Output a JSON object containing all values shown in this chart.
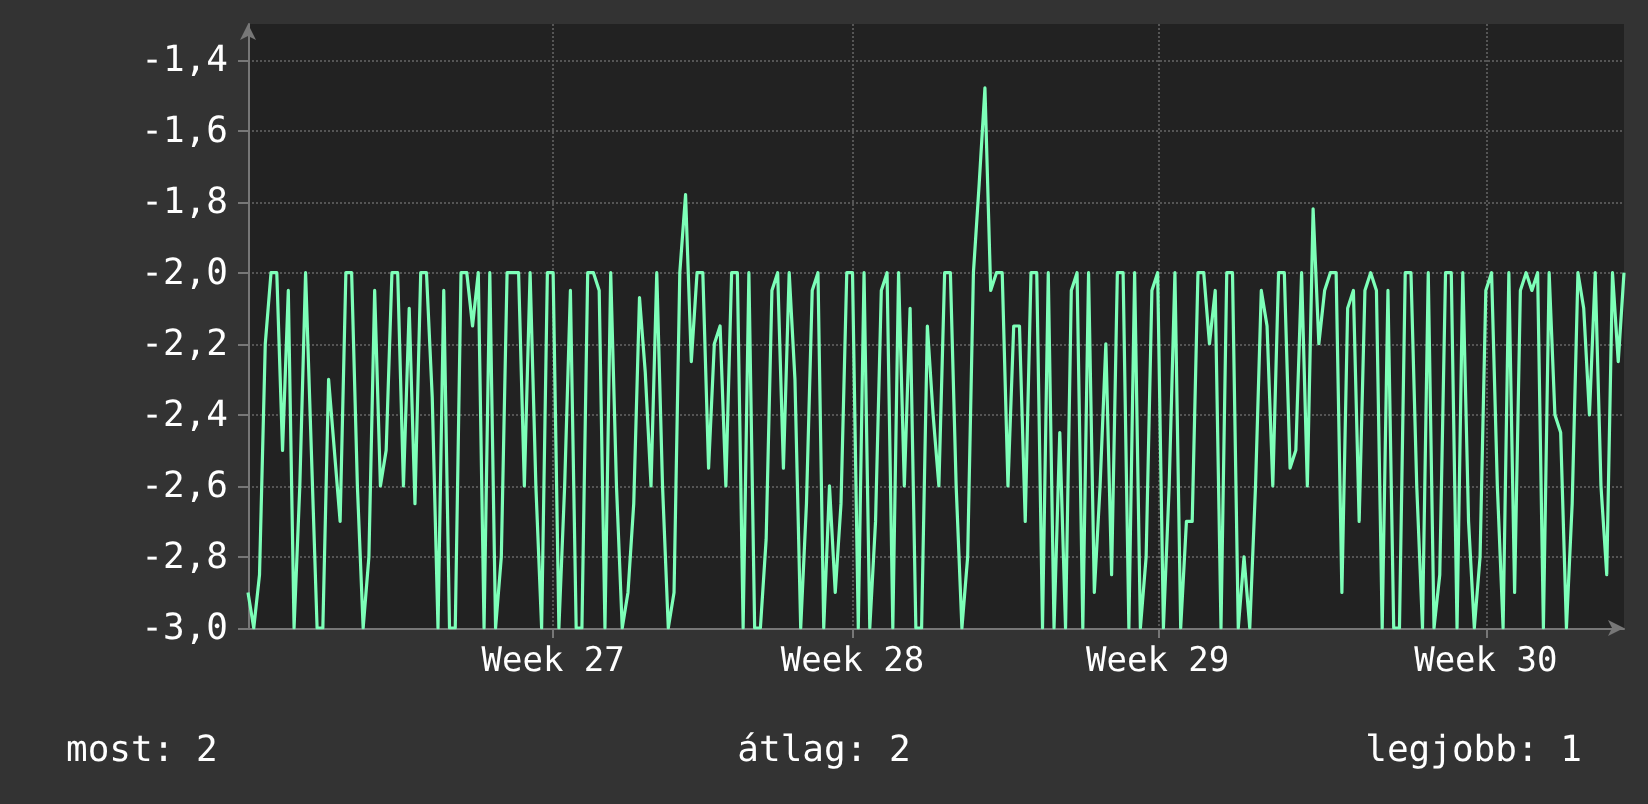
{
  "chart_data": {
    "type": "line",
    "ylim": [
      -3.0,
      -1.3
    ],
    "categories": [
      null,
      null,
      null,
      null,
      null,
      null,
      null,
      null,
      null,
      null,
      null,
      null,
      null,
      null,
      null,
      null,
      null,
      null,
      null,
      null,
      null,
      null,
      null,
      null,
      null,
      null,
      null,
      null,
      null,
      null,
      null,
      null,
      null,
      null,
      null,
      null,
      null,
      null,
      null,
      null,
      null,
      null,
      null,
      null,
      null,
      null,
      null,
      null,
      null,
      null,
      null,
      null,
      null,
      "Week 27",
      null,
      null,
      null,
      null,
      null,
      null,
      null,
      null,
      null,
      null,
      null,
      null,
      null,
      null,
      null,
      null,
      null,
      null,
      null,
      null,
      null,
      null,
      null,
      null,
      null,
      null,
      null,
      null,
      null,
      null,
      null,
      null,
      null,
      null,
      null,
      null,
      null,
      null,
      null,
      null,
      null,
      null,
      null,
      null,
      null,
      null,
      null,
      null,
      null,
      null,
      null,
      "Week 28",
      null,
      null,
      null,
      null,
      null,
      null,
      null,
      null,
      null,
      null,
      null,
      null,
      null,
      null,
      null,
      null,
      null,
      null,
      null,
      null,
      null,
      null,
      null,
      null,
      null,
      null,
      null,
      null,
      null,
      null,
      null,
      null,
      null,
      null,
      null,
      null,
      null,
      null,
      null,
      null,
      null,
      null,
      null,
      null,
      null,
      null,
      null,
      null,
      null,
      null,
      null,
      null,
      "Week 29",
      null,
      null,
      null,
      null,
      null,
      null,
      null,
      null,
      null,
      null,
      null,
      null,
      null,
      null,
      null,
      null,
      null,
      null,
      null,
      null,
      null,
      null,
      null,
      null,
      null,
      null,
      null,
      null,
      null,
      null,
      null,
      null,
      null,
      null,
      null,
      null,
      null,
      null,
      null,
      null,
      null,
      null,
      null,
      null,
      null,
      null,
      null,
      null,
      null,
      null,
      null,
      null,
      null,
      null,
      null,
      null,
      "Week 30",
      null,
      null,
      null,
      null,
      null,
      null,
      null,
      null,
      null,
      null,
      null,
      null,
      null,
      null,
      null,
      null,
      null,
      null,
      null,
      null,
      null,
      null,
      null,
      null
    ],
    "yticks": [
      {
        "value": -3.0,
        "label": "-3,0"
      },
      {
        "value": -2.8,
        "label": "-2,8"
      },
      {
        "value": -2.6,
        "label": "-2,6"
      },
      {
        "value": -2.4,
        "label": "-2,4"
      },
      {
        "value": -2.2,
        "label": "-2,2"
      },
      {
        "value": -2.0,
        "label": "-2,0"
      },
      {
        "value": -1.8,
        "label": "-1,8"
      },
      {
        "value": -1.6,
        "label": "-1,6"
      },
      {
        "value": -1.4,
        "label": "-1,4"
      }
    ],
    "grid": true,
    "marker": "none",
    "line_style": "solid",
    "annotations": [
      "most: 2",
      "átlag: 2",
      "legjobb: 1"
    ],
    "series": [
      {
        "color": "#7dffb8",
        "values": [
          -2.9,
          -3.0,
          -2.85,
          -2.2,
          -2.0,
          -2.0,
          -2.5,
          -2.05,
          -3.0,
          -2.6,
          -2.0,
          -2.5,
          -3.0,
          -3.0,
          -2.3,
          -2.5,
          -2.7,
          -2.0,
          -2.0,
          -2.6,
          -3.0,
          -2.8,
          -2.05,
          -2.6,
          -2.5,
          -2.0,
          -2.0,
          -2.6,
          -2.1,
          -2.65,
          -2.0,
          -2.0,
          -2.35,
          -3.0,
          -2.05,
          -3.0,
          -3.0,
          -2.0,
          -2.0,
          -2.15,
          -2.0,
          -3.0,
          -2.0,
          -3.0,
          -2.8,
          -2.0,
          -2.0,
          -2.0,
          -2.6,
          -2.0,
          -2.6,
          -3.0,
          -2.0,
          -2.0,
          -3.0,
          -2.6,
          -2.05,
          -3.0,
          -3.0,
          -2.0,
          -2.0,
          -2.05,
          -3.0,
          -2.0,
          -2.6,
          -3.0,
          -2.9,
          -2.65,
          -2.07,
          -2.28,
          -2.6,
          -2.0,
          -2.6,
          -3.0,
          -2.9,
          -2.0,
          -1.78,
          -2.25,
          -2.0,
          -2.0,
          -2.55,
          -2.2,
          -2.15,
          -2.6,
          -2.0,
          -2.0,
          -3.0,
          -2.0,
          -3.0,
          -3.0,
          -2.75,
          -2.05,
          -2.0,
          -2.55,
          -2.0,
          -2.3,
          -3.0,
          -2.65,
          -2.05,
          -2.0,
          -3.0,
          -2.6,
          -2.9,
          -2.65,
          -2.0,
          -2.0,
          -3.0,
          -2.0,
          -3.0,
          -2.7,
          -2.05,
          -2.0,
          -3.0,
          -2.0,
          -2.6,
          -2.1,
          -3.0,
          -3.0,
          -2.15,
          -2.4,
          -2.6,
          -2.0,
          -2.0,
          -2.6,
          -3.0,
          -2.8,
          -2.0,
          -1.75,
          -1.48,
          -2.05,
          -2.0,
          -2.0,
          -2.6,
          -2.15,
          -2.15,
          -2.7,
          -2.0,
          -2.0,
          -3.0,
          -2.0,
          -3.0,
          -2.45,
          -3.0,
          -2.05,
          -2.0,
          -3.0,
          -2.0,
          -2.9,
          -2.6,
          -2.2,
          -2.85,
          -2.0,
          -2.0,
          -3.0,
          -2.0,
          -3.0,
          -2.8,
          -2.05,
          -2.0,
          -3.0,
          -2.6,
          -2.0,
          -3.0,
          -2.7,
          -2.7,
          -2.0,
          -2.0,
          -2.2,
          -2.05,
          -3.0,
          -2.0,
          -2.0,
          -3.0,
          -2.8,
          -3.0,
          -2.6,
          -2.05,
          -2.15,
          -2.6,
          -2.0,
          -2.0,
          -2.55,
          -2.5,
          -2.0,
          -2.6,
          -1.82,
          -2.2,
          -2.05,
          -2.0,
          -2.0,
          -2.9,
          -2.1,
          -2.05,
          -2.7,
          -2.05,
          -2.0,
          -2.05,
          -3.0,
          -2.05,
          -3.0,
          -3.0,
          -2.0,
          -2.0,
          -2.6,
          -3.0,
          -2.0,
          -3.0,
          -2.85,
          -2.0,
          -2.0,
          -3.0,
          -2.0,
          -2.7,
          -3.0,
          -2.8,
          -2.05,
          -2.0,
          -2.6,
          -3.0,
          -2.0,
          -2.9,
          -2.05,
          -2.0,
          -2.05,
          -2.0,
          -3.0,
          -2.0,
          -2.4,
          -2.45,
          -3.0,
          -2.65,
          -2.0,
          -2.1,
          -2.4,
          -2.0,
          -2.6,
          -2.85,
          -2.0,
          -2.25,
          -2.0
        ]
      }
    ]
  }
}
